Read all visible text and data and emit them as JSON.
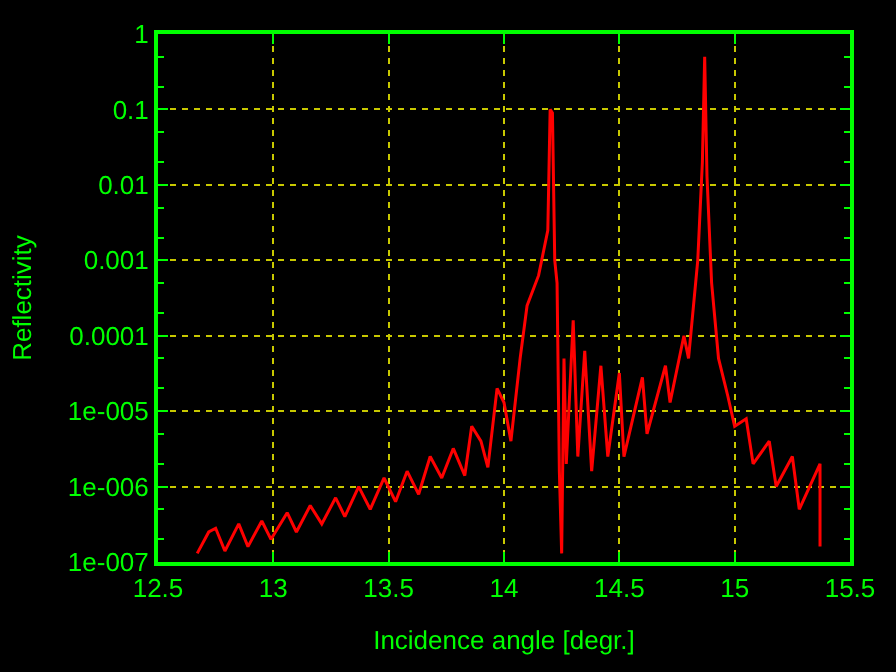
{
  "chart_data": {
    "type": "line",
    "xlabel": "Incidence angle [degr.]",
    "ylabel": "Reflectivity",
    "x": [
      12.67,
      12.72,
      12.75,
      12.79,
      12.85,
      12.89,
      12.95,
      12.99,
      13.06,
      13.1,
      13.16,
      13.21,
      13.27,
      13.31,
      13.37,
      13.42,
      13.48,
      13.53,
      13.58,
      13.63,
      13.68,
      13.73,
      13.78,
      13.83,
      13.86,
      13.9,
      13.93,
      13.97,
      14.0,
      14.03,
      14.07,
      14.1,
      14.15,
      14.19,
      14.2,
      14.21,
      14.22,
      14.23,
      14.24,
      14.25,
      14.26,
      14.27,
      14.3,
      14.32,
      14.35,
      14.38,
      14.42,
      14.45,
      14.5,
      14.52,
      14.6,
      14.62,
      14.7,
      14.72,
      14.78,
      14.8,
      14.84,
      14.86,
      14.87,
      14.88,
      14.9,
      14.93,
      14.97,
      15.0,
      15.05,
      15.08,
      15.15,
      15.18,
      15.25,
      15.28,
      15.37,
      15.37
    ],
    "series": [
      {
        "color": "#ff0000",
        "values": [
          1.3e-07,
          2.5e-07,
          2.8e-07,
          1.4e-07,
          3.2e-07,
          1.6e-07,
          3.5e-07,
          2e-07,
          4.5e-07,
          2.5e-07,
          5.6e-07,
          3.2e-07,
          7.1e-07,
          4e-07,
          1e-06,
          5e-07,
          1.3e-06,
          6.3e-07,
          1.6e-06,
          7.9e-07,
          2.5e-06,
          1.3e-06,
          3.2e-06,
          1.4e-06,
          6.3e-06,
          4e-06,
          1.8e-06,
          2e-05,
          1.3e-05,
          4e-06,
          5e-05,
          0.00025,
          0.00063,
          0.0025,
          0.1,
          0.09,
          0.001,
          0.0005,
          1.6e-06,
          1.3e-07,
          5e-05,
          2e-06,
          0.00016,
          2.5e-06,
          6.3e-05,
          1.6e-06,
          4e-05,
          2.5e-06,
          3.2e-05,
          2.5e-06,
          2.8e-05,
          5e-06,
          4e-05,
          1.3e-05,
          0.0001,
          5e-05,
          0.001,
          0.02,
          0.5,
          0.013,
          0.0005,
          5e-05,
          1.6e-05,
          6.3e-06,
          7.9e-06,
          2e-06,
          4e-06,
          1e-06,
          2.5e-06,
          5e-07,
          2e-06,
          1.6e-07
        ]
      }
    ],
    "log": "y",
    "xlim": [
      12.5,
      15.5
    ],
    "xticks": [
      12.5,
      13,
      13.5,
      14,
      14.5,
      15,
      15.5
    ],
    "ylim": [
      1e-07,
      1
    ],
    "yticks": [
      {
        "value": 1e-07,
        "label": "1e-007"
      },
      {
        "value": 1e-06,
        "label": "1e-006"
      },
      {
        "value": 1e-05,
        "label": "1e-005"
      },
      {
        "value": 0.0001,
        "label": "0.0001"
      },
      {
        "value": 0.001,
        "label": "0.001"
      },
      {
        "value": 0.01,
        "label": "0.01"
      },
      {
        "value": 0.1,
        "label": "0.1"
      },
      {
        "value": 1,
        "label": "1"
      }
    ],
    "grid": true,
    "marker": "none",
    "line_style": "solid"
  }
}
